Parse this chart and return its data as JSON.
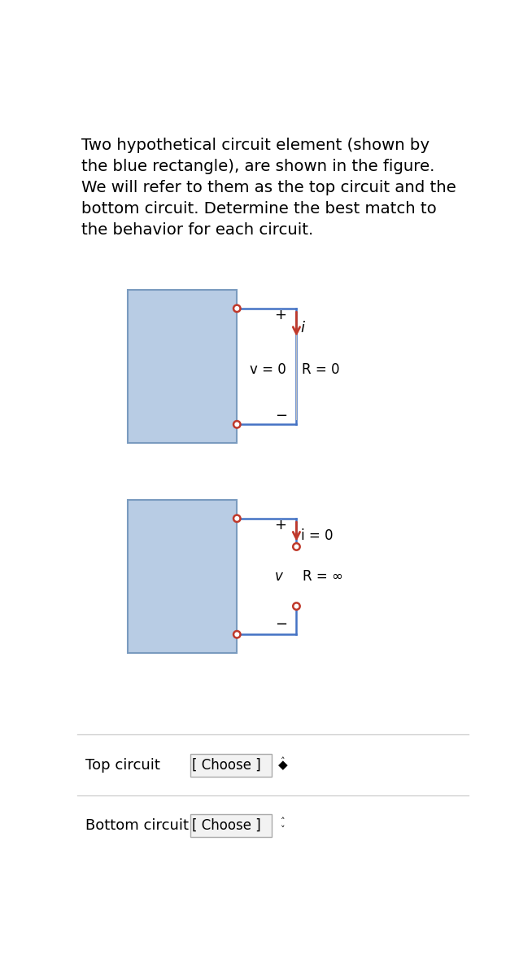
{
  "bg_color": "#ffffff",
  "text_color": "#000000",
  "red_color": "#c0392b",
  "blue_rect_fill": "#b8cce4",
  "blue_rect_edge": "#7a9bbf",
  "wire_color": "#4472c4",
  "circle_edge": "#c0392b",
  "description_lines": [
    "Two hypothetical circuit element (shown by",
    "the blue rectangle), are shown in the figure.",
    "We will refer to them as the top circuit and the",
    "bottom circuit. Determine the best match to",
    "the behavior for each circuit."
  ],
  "top_v_label": "v = 0",
  "top_R_label": "R = 0",
  "top_plus": "+",
  "top_minus": "−",
  "top_i_label": "i",
  "bot_v_label": "v",
  "bot_R_label": "R = ∞",
  "bot_plus": "+",
  "bot_minus": "−",
  "bot_i_label": "i = 0",
  "choose_label": "[ Choose ]",
  "top_label": "Top circuit",
  "bot_label": "Bottom circuit"
}
